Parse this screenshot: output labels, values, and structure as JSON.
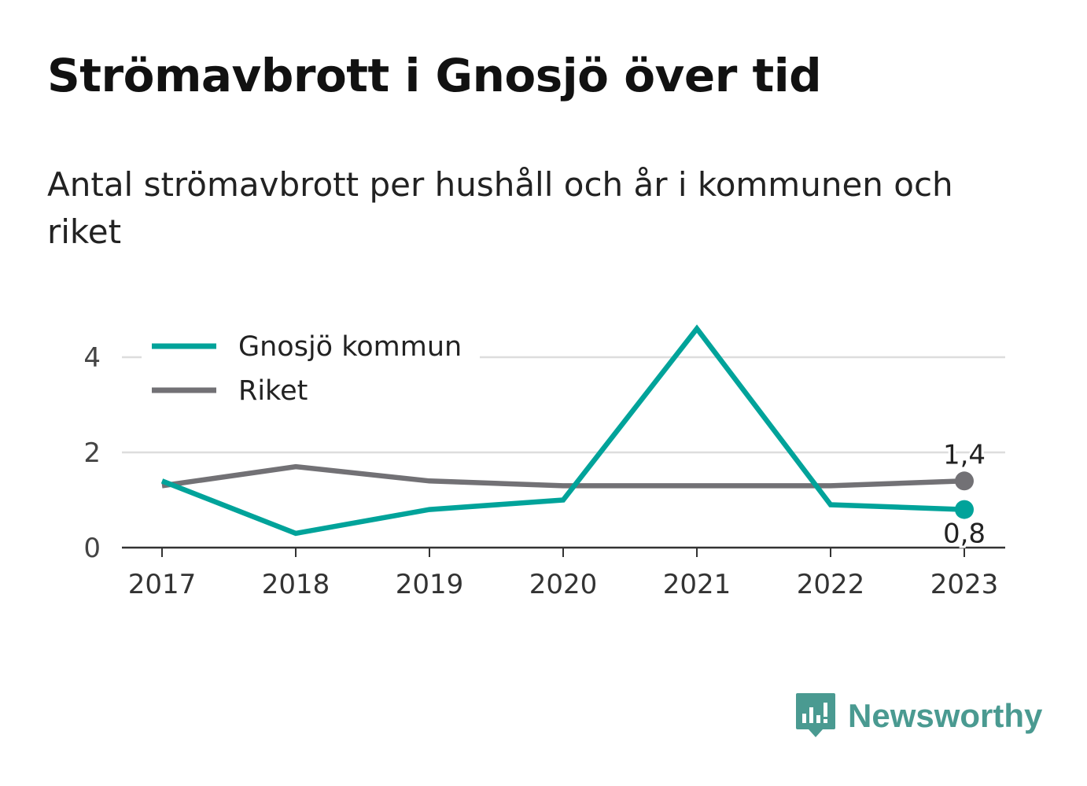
{
  "title": "Strömavbrott i Gnosjö över tid",
  "subtitle": "Antal strömavbrott per hushåll och år i kommunen och riket",
  "brand": "Newsworthy",
  "chart_data": {
    "type": "line",
    "x": [
      "2017",
      "2018",
      "2019",
      "2020",
      "2021",
      "2022",
      "2023"
    ],
    "series": [
      {
        "name": "Gnosjö kommun",
        "color": "#00a39a",
        "values": [
          1.4,
          0.3,
          0.8,
          1.0,
          4.6,
          0.9,
          0.8
        ]
      },
      {
        "name": "Riket",
        "color": "#727175",
        "values": [
          1.3,
          1.7,
          1.4,
          1.3,
          1.3,
          1.3,
          1.4
        ]
      }
    ],
    "end_labels": [
      "0,8",
      "1,4"
    ],
    "yticks": [
      "0",
      "2",
      "4"
    ],
    "ylim": [
      0,
      4.9
    ],
    "grid": true,
    "legend_position": "top-left"
  }
}
